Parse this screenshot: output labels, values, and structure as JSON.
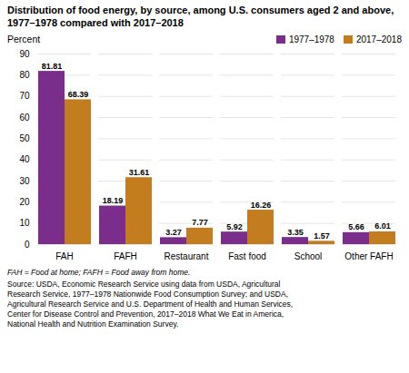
{
  "chart_data": {
    "type": "bar",
    "title": "Distribution of food energy, by source, among U.S. consumers aged 2 and above, 1977–1978 compared with 2017–2018",
    "ylabel": "Percent",
    "categories": [
      "FAH",
      "FAFH",
      "Restaurant",
      "Fast food",
      "School",
      "Other FAFH"
    ],
    "series": [
      {
        "name": "1977–1978",
        "color": "#7b2d8b",
        "values": [
          81.81,
          18.19,
          3.27,
          5.92,
          3.35,
          5.66
        ]
      },
      {
        "name": "2017–2018",
        "color": "#c47d1e",
        "values": [
          68.39,
          31.61,
          7.77,
          16.26,
          1.57,
          6.01
        ]
      }
    ],
    "ylim": [
      0,
      90
    ],
    "yticks": [
      0,
      10,
      20,
      30,
      40,
      50,
      60,
      70,
      80,
      90
    ],
    "grid": true,
    "legend": "upper right",
    "data_labels": true,
    "footnotes": [
      "FAH = Food at home; FAFH = Food away from home.",
      "Source: USDA, Economic Research Service using data from USDA, Agricultural\nResearch Service, 1977–1978 Nationwide Food Consumption Survey; and USDA,\nAgricultural Research Service and U.S. Department of Health and Human Services,\nCenter for Disease Control and Prevention, 2017–2018 What We Eat in America,\nNational Health and Nutrition Examination Survey."
    ]
  }
}
